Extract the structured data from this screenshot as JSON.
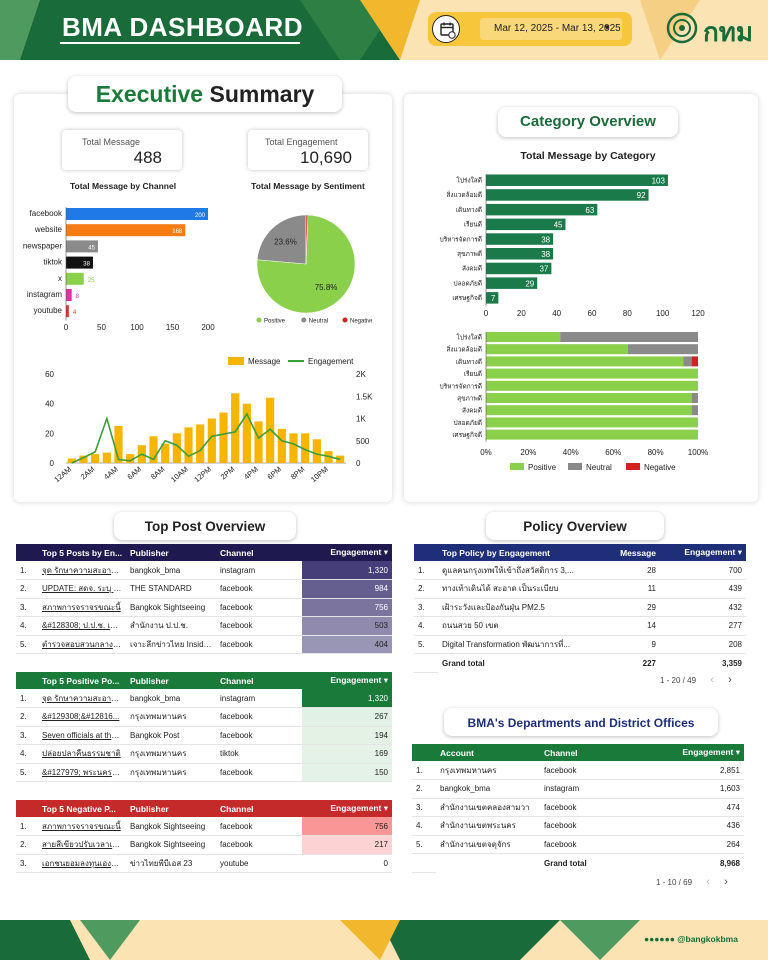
{
  "header": {
    "title": "BMA DASHBOARD",
    "date_range": "Mar 12, 2025 - Mar 13, 2025",
    "logo_text": "กทม",
    "colors": {
      "green": "#1a6b3a",
      "yellow": "#f7c63b",
      "cream": "#fbe3b4"
    }
  },
  "executive": {
    "title_green": "Executive",
    "title_black": "Summary",
    "total_message_label": "Total Message",
    "total_message": "488",
    "total_engagement_label": "Total Engagement",
    "total_engagement": "10,690",
    "channel_chart_title": "Total Message by Channel",
    "sentiment_chart_title": "Total Message by Sentiment"
  },
  "category": {
    "title": "Category Overview",
    "chart_title": "Total Message by Category"
  },
  "top_post": {
    "title": "Top Post Overview",
    "top5": {
      "headers": [
        "Top 5 Posts by En...",
        "Publisher",
        "Channel",
        "Engagement ▾"
      ],
      "rows": [
        {
          "n": "1.",
          "post": "จุด รักษาความสะอาดกรุงเทพ",
          "publisher": "bangkok_bma",
          "channel": "instagram",
          "eng": "1,320"
        },
        {
          "n": "2.",
          "post": "UPDATE: สดจ. ระบุ 7 เจ้า...",
          "publisher": "THE STANDARD",
          "channel": "facebook",
          "eng": "984"
        },
        {
          "n": "3.",
          "post": "สภาพการจราจรขณะนี้",
          "publisher": "Bangkok Sightseeing",
          "channel": "facebook",
          "eng": "756"
        },
        {
          "n": "4.",
          "post": "&#128308; ป.ป.ช. เผยผล...",
          "publisher": "สำนักงาน ป.ป.ช.",
          "channel": "facebook",
          "eng": "503"
        },
        {
          "n": "5.",
          "post": "ตำรวจสอบสวนกลาง (CIB)...",
          "publisher": "เจาะลึกข่าวไทย Inside Th...",
          "channel": "facebook",
          "eng": "404"
        }
      ]
    },
    "positive": {
      "headers": [
        "Top 5 Positive Po...",
        "Publisher",
        "Channel",
        "Engagement ▾"
      ],
      "rows": [
        {
          "n": "1.",
          "post": "จุด รักษาความสะอาดกรุงเทพ",
          "publisher": "bangkok_bma",
          "channel": "instagram",
          "eng": "1,320"
        },
        {
          "n": "2.",
          "post": "&#129308;&#12816...",
          "publisher": "กรุงเทพมหานคร",
          "channel": "facebook",
          "eng": "267"
        },
        {
          "n": "3.",
          "post": "Seven officials at the...",
          "publisher": "Bangkok Post",
          "channel": "facebook",
          "eng": "194"
        },
        {
          "n": "4.",
          "post": "ปล่อยปลาคืนธรรมชาติ",
          "publisher": "กรุงเทพมหานคร",
          "channel": "tiktok",
          "eng": "169"
        },
        {
          "n": "5.",
          "post": "&#127979; พระนครยกระดับ...",
          "publisher": "กรุงเทพมหานคร",
          "channel": "facebook",
          "eng": "150"
        }
      ]
    },
    "negative": {
      "headers": [
        "Top 5 Negative P...",
        "Publisher",
        "Channel",
        "Engagement ▾"
      ],
      "rows": [
        {
          "n": "1.",
          "post": "สภาพการจราจรขณะนี้",
          "publisher": "Bangkok Sightseeing",
          "channel": "facebook",
          "eng": "756"
        },
        {
          "n": "2.",
          "post": "สายสีเขียวปรับเวลาเดินรถ",
          "publisher": "Bangkok Sightseeing",
          "channel": "facebook",
          "eng": "217"
        },
        {
          "n": "3.",
          "post": "เอกชนยอมลงทุนเองทั้งหมด",
          "publisher": "ข่าวไทยพีบีเอส 23",
          "channel": "youtube",
          "eng": "0"
        }
      ]
    }
  },
  "policy": {
    "title": "Policy Overview",
    "headers": [
      "Top Policy by Engagement",
      "Message",
      "Engagement ▾"
    ],
    "rows": [
      {
        "n": "1.",
        "policy": "ดูแลคนกรุงเทพให้เข้าถึงสวัสดิการ 3,...",
        "msg": "28",
        "eng": "700"
      },
      {
        "n": "2.",
        "policy": "ทางเท้าเดินได้ สะอาด เป็นระเบียบ",
        "msg": "11",
        "eng": "439"
      },
      {
        "n": "3.",
        "policy": "เฝ้าระวังและป้องกันฝุ่น PM2.5",
        "msg": "29",
        "eng": "432"
      },
      {
        "n": "4.",
        "policy": "ถนนสวย 50 เขต",
        "msg": "14",
        "eng": "277"
      },
      {
        "n": "5.",
        "policy": "Digital Transformation พัฒนาการที่...",
        "msg": "9",
        "eng": "208"
      }
    ],
    "grand_total_label": "Grand total",
    "grand_total_msg": "227",
    "grand_total_eng": "3,359",
    "pager": "1 - 20 / 49"
  },
  "departments": {
    "title": "BMA's Departments and District Offices",
    "headers": [
      "Account",
      "Channel",
      "Engagement ▾"
    ],
    "rows": [
      {
        "n": "1.",
        "account": "กรุงเทพมหานคร",
        "channel": "facebook",
        "eng": "2,851"
      },
      {
        "n": "2.",
        "account": "bangkok_bma",
        "channel": "instagram",
        "eng": "1,603"
      },
      {
        "n": "3.",
        "account": "สำนักงานเขตคลองสามวา",
        "channel": "facebook",
        "eng": "474"
      },
      {
        "n": "4.",
        "account": "สำนักงานเขตพระนคร",
        "channel": "facebook",
        "eng": "436"
      },
      {
        "n": "5.",
        "account": "สำนักงานเขตจตุจักร",
        "channel": "facebook",
        "eng": "264"
      }
    ],
    "grand_total_label": "Grand total",
    "grand_total_eng": "8,968",
    "pager": "1 - 10 / 69"
  },
  "footer": {
    "handle": "@bangkokbma"
  },
  "chart_data": [
    {
      "type": "bar",
      "title": "Total Message by Channel",
      "categories": [
        "facebook",
        "website",
        "newspaper",
        "tiktok",
        "x",
        "instagram",
        "youtube"
      ],
      "values": [
        200,
        168,
        45,
        38,
        25,
        8,
        4
      ],
      "colors": [
        "#1f7ae8",
        "#f57c12",
        "#8a8a8a",
        "#111111",
        "#8bd04a",
        "#e62ea6",
        "#e0332e"
      ],
      "xlim": [
        0,
        200
      ],
      "xticks": [
        "0",
        "50",
        "100",
        "150",
        "200"
      ]
    },
    {
      "type": "pie",
      "title": "Total Message by Sentiment",
      "labels": [
        "Positive",
        "Neutral",
        "Negative"
      ],
      "values": [
        75.8,
        23.6,
        0.6
      ],
      "value_labels": [
        "75.8%",
        "23.6%",
        ""
      ],
      "colors": [
        "#8bd04a",
        "#8a8a8a",
        "#d62020"
      ]
    },
    {
      "type": "bar",
      "legend": [
        "Message",
        "Engagement"
      ],
      "x": [
        "12AM",
        "1AM",
        "2AM",
        "3AM",
        "4AM",
        "5AM",
        "6AM",
        "7AM",
        "8AM",
        "9AM",
        "10AM",
        "11AM",
        "12PM",
        "1PM",
        "2PM",
        "3PM",
        "4PM",
        "5PM",
        "6PM",
        "7PM",
        "8PM",
        "9PM",
        "10PM",
        "11PM"
      ],
      "x_tick_labels": [
        "12AM",
        "2AM",
        "4AM",
        "6AM",
        "8AM",
        "10AM",
        "12PM",
        "2PM",
        "4PM",
        "6PM",
        "8PM",
        "10PM"
      ],
      "series": [
        {
          "name": "Message",
          "values": [
            3,
            5,
            6,
            7,
            25,
            6,
            12,
            18,
            13,
            20,
            24,
            26,
            30,
            34,
            47,
            40,
            28,
            44,
            23,
            20,
            20,
            16,
            8,
            5
          ]
        },
        {
          "name": "Engagement",
          "values": [
            0,
            120,
            250,
            1000,
            80,
            50,
            200,
            80,
            500,
            400,
            150,
            280,
            600,
            650,
            700,
            1100,
            560,
            760,
            500,
            430,
            300,
            200,
            150,
            80
          ]
        }
      ],
      "y_left_ticks": [
        "0",
        "20",
        "40",
        "60"
      ],
      "y_right_ticks": [
        "0",
        "500",
        "1K",
        "1.5K",
        "2K"
      ],
      "ylim_left": [
        0,
        60
      ],
      "ylim_right": [
        0,
        2000
      ],
      "colors": [
        "#f7b500",
        "#3a9e3a"
      ]
    },
    {
      "type": "bar",
      "title": "Total Message by Category",
      "categories": [
        "โปร่งใสดี",
        "สิ่งแวดล้อมดี",
        "เดินทางดี",
        "เรียนดี",
        "บริหารจัดการดี",
        "สุขภาพดี",
        "สังคมดี",
        "ปลอดภัยดี",
        "เศรษฐกิจดี"
      ],
      "values": [
        103,
        92,
        63,
        45,
        38,
        38,
        37,
        29,
        7
      ],
      "xlim": [
        0,
        120
      ],
      "xticks": [
        "0",
        "20",
        "40",
        "60",
        "80",
        "100",
        "120"
      ],
      "color": "#1a7a4a"
    },
    {
      "type": "bar",
      "stacked": "100%",
      "categories": [
        "โปร่งใสดี",
        "สิ่งแวดล้อมดี",
        "เดินทางดี",
        "เรียนดี",
        "บริหารจัดการดี",
        "สุขภาพดี",
        "สังคมดี",
        "ปลอดภัยดี",
        "เศรษฐกิจดี"
      ],
      "series": [
        {
          "name": "Positive",
          "values": [
            35,
            67,
            93,
            100,
            100,
            97,
            97,
            100,
            100
          ]
        },
        {
          "name": "Neutral",
          "values": [
            65,
            33,
            4,
            0,
            0,
            3,
            3,
            0,
            0
          ]
        },
        {
          "name": "Negative",
          "values": [
            0,
            0,
            3,
            0,
            0,
            0,
            0,
            0,
            0
          ]
        }
      ],
      "xticks": [
        "0%",
        "20%",
        "40%",
        "60%",
        "80%",
        "100%"
      ],
      "colors": [
        "#8bd04a",
        "#8a8a8a",
        "#d62020"
      ]
    }
  ]
}
